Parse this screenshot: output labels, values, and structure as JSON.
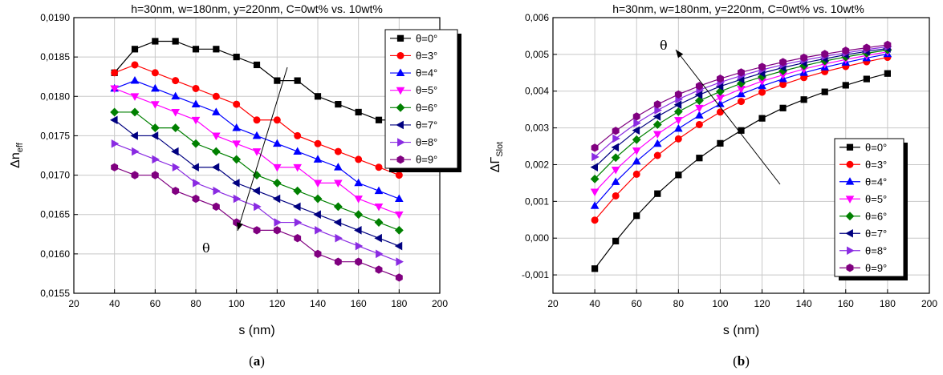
{
  "chart_data": [
    {
      "type": "line",
      "title": "h=30nm, w=180nm, y=220nm, C=0wt% vs. 10wt%",
      "xlabel": "s (nm)",
      "ylabel_main": "Δn",
      "ylabel_sub": "eff",
      "caption_open": "(",
      "caption_letter": "a",
      "caption_close": ")",
      "annotation": "θ",
      "xlim": [
        20,
        200
      ],
      "ylim": [
        0.0155,
        0.019
      ],
      "xticks": [
        20,
        40,
        60,
        80,
        100,
        120,
        140,
        160,
        180,
        200
      ],
      "yticks": [
        0.0155,
        0.016,
        0.0165,
        0.017,
        0.0175,
        0.018,
        0.0185,
        0.019
      ],
      "xtick_labels": [
        "20",
        "40",
        "60",
        "80",
        "100",
        "120",
        "140",
        "160",
        "180",
        "200"
      ],
      "ytick_labels": [
        "0,0155",
        "0,0160",
        "0,0165",
        "0,0170",
        "0,0175",
        "0,0180",
        "0,0185",
        "0,0190"
      ],
      "grid": true,
      "legend_position": "top-right",
      "x": [
        40,
        50,
        60,
        70,
        80,
        90,
        100,
        110,
        120,
        130,
        140,
        150,
        160,
        170,
        180
      ],
      "series": [
        {
          "name": "θ=0°",
          "color": "#000000",
          "marker": "square",
          "values": [
            0.0183,
            0.0186,
            0.0187,
            0.0187,
            0.0186,
            0.0186,
            0.0185,
            0.0184,
            0.0182,
            0.0182,
            0.018,
            0.0179,
            0.0178,
            0.0177,
            0.0177
          ]
        },
        {
          "name": "θ=3°",
          "color": "#ff0000",
          "marker": "circle",
          "values": [
            0.0183,
            0.0184,
            0.0183,
            0.0182,
            0.0181,
            0.018,
            0.0179,
            0.0177,
            0.0177,
            0.0175,
            0.0174,
            0.0173,
            0.0172,
            0.0171,
            0.017
          ]
        },
        {
          "name": "θ=4°",
          "color": "#0000ff",
          "marker": "triangle-up",
          "values": [
            0.0181,
            0.0182,
            0.0181,
            0.018,
            0.0179,
            0.0178,
            0.0176,
            0.0175,
            0.0174,
            0.0173,
            0.0172,
            0.0171,
            0.0169,
            0.0168,
            0.0167
          ]
        },
        {
          "name": "θ=5°",
          "color": "#ff00ff",
          "marker": "triangle-down",
          "values": [
            0.0181,
            0.018,
            0.0179,
            0.0178,
            0.0177,
            0.0175,
            0.0174,
            0.0173,
            0.0171,
            0.0171,
            0.0169,
            0.0169,
            0.0167,
            0.0166,
            0.0165
          ]
        },
        {
          "name": "θ=6°",
          "color": "#008000",
          "marker": "diamond",
          "values": [
            0.0178,
            0.0178,
            0.0176,
            0.0176,
            0.0174,
            0.0173,
            0.0172,
            0.017,
            0.0169,
            0.0168,
            0.0167,
            0.0166,
            0.0165,
            0.0164,
            0.0163
          ]
        },
        {
          "name": "θ=7°",
          "color": "#000080",
          "marker": "triangle-left",
          "values": [
            0.0177,
            0.0175,
            0.0175,
            0.0173,
            0.0171,
            0.0171,
            0.0169,
            0.0168,
            0.0167,
            0.0166,
            0.0165,
            0.0164,
            0.0163,
            0.0162,
            0.0161
          ]
        },
        {
          "name": "θ=8°",
          "color": "#8a2be2",
          "marker": "triangle-right",
          "values": [
            0.0174,
            0.0173,
            0.0172,
            0.0171,
            0.0169,
            0.0168,
            0.0167,
            0.0166,
            0.0164,
            0.0164,
            0.0163,
            0.0162,
            0.0161,
            0.016,
            0.0159
          ]
        },
        {
          "name": "θ=9°",
          "color": "#800080",
          "marker": "hexagon",
          "values": [
            0.0171,
            0.017,
            0.017,
            0.0168,
            0.0167,
            0.0166,
            0.0164,
            0.0163,
            0.0163,
            0.0162,
            0.016,
            0.0159,
            0.0159,
            0.0158,
            0.0157
          ]
        }
      ]
    },
    {
      "type": "line",
      "title": "h=30nm, w=180nm, y=220nm, C=0wt% vs. 10wt%",
      "xlabel": "s (nm)",
      "ylabel_main": "ΔΓ",
      "ylabel_sub": "Slot",
      "caption_open": "(",
      "caption_letter": "b",
      "caption_close": ")",
      "annotation": "θ",
      "xlim": [
        20,
        200
      ],
      "ylim": [
        -0.0015,
        0.006
      ],
      "xticks": [
        20,
        40,
        60,
        80,
        100,
        120,
        140,
        160,
        180,
        200
      ],
      "yticks": [
        -0.001,
        0.0,
        0.001,
        0.002,
        0.003,
        0.004,
        0.005,
        0.006
      ],
      "xtick_labels": [
        "20",
        "40",
        "60",
        "80",
        "100",
        "120",
        "140",
        "160",
        "180",
        "200"
      ],
      "ytick_labels": [
        "-0,001",
        "0,000",
        "0,001",
        "0,002",
        "0,003",
        "0,004",
        "0,005",
        "0,006"
      ],
      "grid": true,
      "legend_position": "bottom-right",
      "x": [
        40,
        50,
        60,
        70,
        80,
        90,
        100,
        110,
        120,
        130,
        140,
        150,
        160,
        170,
        180
      ],
      "series": [
        {
          "name": "θ=0°",
          "color": "#000000",
          "marker": "square",
          "values": [
            -0.00083,
            -8e-05,
            0.00061,
            0.00121,
            0.00172,
            0.00218,
            0.00258,
            0.00293,
            0.00326,
            0.00354,
            0.00377,
            0.00398,
            0.00416,
            0.00433,
            0.00448
          ]
        },
        {
          "name": "θ=3°",
          "color": "#ff0000",
          "marker": "circle",
          "values": [
            0.00049,
            0.00115,
            0.00174,
            0.00225,
            0.0027,
            0.00309,
            0.00343,
            0.00372,
            0.00397,
            0.00418,
            0.00437,
            0.00453,
            0.00467,
            0.0048,
            0.00492
          ]
        },
        {
          "name": "θ=4°",
          "color": "#0000ff",
          "marker": "triangle-up",
          "values": [
            0.00088,
            0.00153,
            0.00209,
            0.00257,
            0.00298,
            0.00334,
            0.00365,
            0.00392,
            0.00414,
            0.00433,
            0.0045,
            0.00465,
            0.00478,
            0.0049,
            0.00501
          ]
        },
        {
          "name": "θ=5°",
          "color": "#ff00ff",
          "marker": "triangle-down",
          "values": [
            0.00126,
            0.00186,
            0.00238,
            0.00283,
            0.00321,
            0.00354,
            0.00382,
            0.00406,
            0.00427,
            0.00444,
            0.0046,
            0.00474,
            0.00486,
            0.00497,
            0.00507
          ]
        },
        {
          "name": "θ=6°",
          "color": "#008000",
          "marker": "diamond",
          "values": [
            0.00161,
            0.00219,
            0.00268,
            0.00309,
            0.00344,
            0.00374,
            0.00399,
            0.00421,
            0.00439,
            0.00455,
            0.00469,
            0.00482,
            0.00493,
            0.00503,
            0.00512
          ]
        },
        {
          "name": "θ=7°",
          "color": "#000080",
          "marker": "triangle-left",
          "values": [
            0.00193,
            0.00247,
            0.00293,
            0.00331,
            0.00363,
            0.0039,
            0.00413,
            0.00432,
            0.00449,
            0.00464,
            0.00477,
            0.00488,
            0.00499,
            0.00508,
            0.00516
          ]
        },
        {
          "name": "θ=8°",
          "color": "#8a2be2",
          "marker": "triangle-right",
          "values": [
            0.00221,
            0.00271,
            0.00313,
            0.00348,
            0.00378,
            0.00403,
            0.00424,
            0.00442,
            0.00458,
            0.00472,
            0.00484,
            0.00495,
            0.00504,
            0.00513,
            0.00521
          ]
        },
        {
          "name": "θ=9°",
          "color": "#800080",
          "marker": "hexagon",
          "values": [
            0.00246,
            0.00292,
            0.00331,
            0.00364,
            0.00391,
            0.00414,
            0.00434,
            0.00451,
            0.00466,
            0.00479,
            0.00491,
            0.00501,
            0.0051,
            0.00518,
            0.00526
          ]
        }
      ]
    }
  ]
}
